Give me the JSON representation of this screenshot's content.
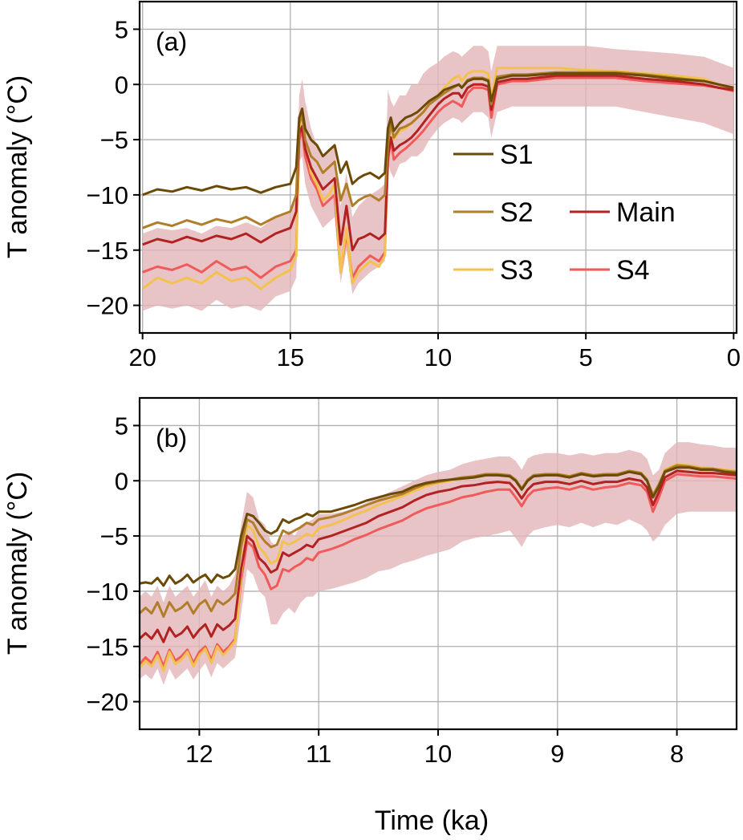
{
  "chart_data": [
    {
      "panel_label": "(a)",
      "type": "line",
      "ylabel": "T anomaly (°C)",
      "xlabel": "",
      "xlim": [
        20.1,
        -0.1
      ],
      "ylim": [
        -22.5,
        7.5
      ],
      "xticks": [
        20,
        15,
        10,
        5,
        0
      ],
      "yticks": [
        5,
        0,
        -5,
        -10,
        -15,
        -20
      ],
      "ytick_labels": [
        "5",
        "0",
        "−5",
        "−10",
        "−15",
        "−20"
      ],
      "grid": true,
      "legend": {
        "placement": "center-right",
        "entries": [
          "S1",
          "S2",
          "Main",
          "S3",
          "S4"
        ]
      },
      "x": [
        20,
        19.5,
        19,
        18.5,
        18,
        17.5,
        17,
        16.5,
        16,
        15.5,
        15,
        14.8,
        14.7,
        14.6,
        14.5,
        14.3,
        14.1,
        13.9,
        13.7,
        13.5,
        13.3,
        13.1,
        12.9,
        12.7,
        12.5,
        12.3,
        12,
        11.8,
        11.7,
        11.6,
        11.5,
        11.3,
        11.1,
        10.9,
        10.7,
        10.5,
        10.3,
        10,
        9.8,
        9.5,
        9.3,
        9.2,
        9,
        8.8,
        8.5,
        8.3,
        8.2,
        8,
        7.5,
        7,
        6,
        5,
        4,
        3,
        2,
        1,
        0.5,
        0
      ],
      "band": {
        "lower": [
          -20.5,
          -20,
          -20.3,
          -20,
          -20.5,
          -19.5,
          -20.3,
          -20,
          -20.5,
          -19.2,
          -18.7,
          -17.5,
          -7,
          -6.5,
          -9,
          -11,
          -12,
          -13,
          -12.5,
          -12,
          -18,
          -15,
          -19,
          -18,
          -17.5,
          -17,
          -16.5,
          -16,
          -7,
          -8,
          -8.5,
          -7.2,
          -7,
          -6.5,
          -6.5,
          -6,
          -5,
          -4,
          -3.5,
          -3,
          -3.2,
          -3.5,
          -3,
          -2.5,
          -2.5,
          -3,
          -4.8,
          -2.5,
          -2,
          -2,
          -2,
          -2,
          -2,
          -2.5,
          -3,
          -3.5,
          -4,
          -4.5
        ],
        "upper": [
          -13.5,
          -13,
          -13.2,
          -13,
          -13.5,
          -12.8,
          -13,
          -12.5,
          -13,
          -12,
          -11.5,
          -10.5,
          -1,
          0.5,
          -1.5,
          -4,
          -5.5,
          -6.5,
          -5.8,
          -5.5,
          -11,
          -8,
          -12,
          -11,
          -10.5,
          -10,
          -9.5,
          -9,
          -0.5,
          -1.5,
          -2,
          -1,
          -1,
          0,
          0,
          1,
          1.5,
          2,
          2.5,
          3,
          2.8,
          2.5,
          3,
          3.5,
          3.5,
          3,
          1.2,
          3.5,
          3.5,
          3.5,
          3.5,
          3.5,
          3.2,
          3,
          2.8,
          2.5,
          2,
          1.5
        ]
      },
      "series": [
        {
          "name": "S1",
          "color": "#6b4a07",
          "values": [
            -10,
            -9.5,
            -9.7,
            -9.3,
            -9.6,
            -9.2,
            -9.5,
            -9.3,
            -9.8,
            -9.3,
            -9,
            -7.5,
            -3,
            -2.2,
            -4,
            -5,
            -5.5,
            -6.5,
            -6,
            -5.5,
            -8,
            -7,
            -9,
            -8.5,
            -8.2,
            -8,
            -8.5,
            -8,
            -4,
            -3,
            -4.2,
            -3.5,
            -3,
            -2.8,
            -2.5,
            -2,
            -1.5,
            -1,
            -0.5,
            -0.2,
            0,
            -0.3,
            0.3,
            0.5,
            0.5,
            0.3,
            -1.5,
            0.5,
            0.8,
            0.8,
            1,
            1,
            1,
            0.8,
            0.5,
            0.3,
            0,
            -0.3
          ]
        },
        {
          "name": "S2",
          "color": "#b07e2a",
          "values": [
            -13,
            -12.5,
            -12.8,
            -12.3,
            -12.7,
            -12.2,
            -12.5,
            -12,
            -12.7,
            -12,
            -11.5,
            -10,
            -3.5,
            -2.8,
            -5,
            -6.5,
            -7,
            -8,
            -7.5,
            -7,
            -10.5,
            -9,
            -11,
            -10.5,
            -10.2,
            -10,
            -10.5,
            -10,
            -5.5,
            -3.5,
            -4.8,
            -4,
            -3.8,
            -3.5,
            -3,
            -2.5,
            -1.8,
            -1.2,
            -0.8,
            -0.3,
            0,
            -0.3,
            0.4,
            0.6,
            0.6,
            0.4,
            -1.8,
            0.7,
            0.9,
            0.9,
            1.1,
            1.1,
            1.1,
            0.9,
            0.6,
            0.3,
            0,
            -0.3
          ]
        },
        {
          "name": "Main",
          "color": "#b22222",
          "values": [
            -14.5,
            -14,
            -14.3,
            -13.8,
            -14.2,
            -13.7,
            -14,
            -13.5,
            -14.3,
            -13.5,
            -13,
            -11.5,
            -4.5,
            -3.8,
            -5.8,
            -7.5,
            -8.5,
            -9.5,
            -9,
            -8.5,
            -14.5,
            -11,
            -15,
            -14,
            -13.8,
            -13.5,
            -14,
            -13.5,
            -6.5,
            -4.8,
            -6,
            -5.5,
            -5.2,
            -4.8,
            -4.2,
            -3.5,
            -2.8,
            -1.8,
            -1.3,
            -0.8,
            -0.8,
            -1.2,
            -0.3,
            0,
            0,
            -0.2,
            -2.3,
            0.2,
            0.5,
            0.5,
            0.8,
            0.8,
            0.8,
            0.5,
            0.3,
            0,
            -0.3,
            -0.5
          ]
        },
        {
          "name": "S3",
          "color": "#f2c14e",
          "values": [
            -18.5,
            -17.5,
            -18,
            -17.5,
            -18,
            -17,
            -17.8,
            -17.5,
            -18.5,
            -17.5,
            -16.8,
            -15.5,
            -4,
            -2.5,
            -5.5,
            -8,
            -9,
            -10.5,
            -10,
            -9,
            -17,
            -13,
            -18,
            -17,
            -16.5,
            -16,
            -16.5,
            -15.5,
            -5,
            -3.5,
            -5,
            -4.2,
            -4,
            -3.5,
            -3,
            -2.5,
            -1.8,
            -1,
            -0.3,
            0.5,
            0.8,
            0.3,
            1,
            1.2,
            1.2,
            1,
            -1.2,
            1.5,
            1.5,
            1.5,
            1.5,
            1.3,
            1.2,
            1,
            0.8,
            0.5,
            0,
            -0.5
          ]
        },
        {
          "name": "S4",
          "color": "#f05a5a",
          "values": [
            -17,
            -16.5,
            -16.8,
            -16.3,
            -17,
            -16,
            -16.8,
            -16.5,
            -17.5,
            -16.5,
            -16,
            -15,
            -5,
            -4.2,
            -6.5,
            -8.5,
            -9.5,
            -11,
            -10.5,
            -10,
            -17,
            -13.5,
            -17.5,
            -16.5,
            -16,
            -15.5,
            -16,
            -15.2,
            -7,
            -5,
            -6.8,
            -6.2,
            -5.8,
            -5.3,
            -4.8,
            -4.2,
            -3.5,
            -2.5,
            -2,
            -1.5,
            -1.8,
            -2,
            -0.8,
            -0.3,
            -0.3,
            -0.5,
            -3,
            0,
            0.3,
            0.3,
            0.6,
            0.6,
            0.6,
            0.3,
            0.1,
            -0.1,
            -0.3,
            -0.6
          ]
        }
      ]
    },
    {
      "panel_label": "(b)",
      "type": "line",
      "ylabel": "T anomaly (°C)",
      "xlabel": "Time (ka)",
      "xlim": [
        12.5,
        7.5
      ],
      "ylim": [
        -22.5,
        7.5
      ],
      "xticks": [
        12,
        11,
        10,
        9,
        8
      ],
      "yticks": [
        5,
        0,
        -5,
        -10,
        -15,
        -20
      ],
      "ytick_labels": [
        "5",
        "0",
        "−5",
        "−10",
        "−15",
        "−20"
      ],
      "grid": true,
      "x": [
        12.5,
        12.45,
        12.4,
        12.35,
        12.3,
        12.25,
        12.2,
        12.15,
        12.1,
        12.05,
        12,
        11.95,
        11.9,
        11.85,
        11.8,
        11.75,
        11.7,
        11.65,
        11.6,
        11.55,
        11.5,
        11.45,
        11.4,
        11.35,
        11.3,
        11.25,
        11.2,
        11.15,
        11.1,
        11.05,
        11,
        10.9,
        10.8,
        10.7,
        10.6,
        10.5,
        10.4,
        10.3,
        10.2,
        10.1,
        10,
        9.9,
        9.8,
        9.7,
        9.6,
        9.5,
        9.4,
        9.35,
        9.3,
        9.25,
        9.2,
        9.1,
        9,
        8.9,
        8.8,
        8.7,
        8.6,
        8.5,
        8.4,
        8.3,
        8.25,
        8.2,
        8.15,
        8.1,
        8,
        7.9,
        7.8,
        7.7,
        7.6,
        7.5
      ],
      "band": {
        "lower": [
          -18,
          -17.5,
          -18,
          -17,
          -18.5,
          -17,
          -18,
          -17.5,
          -17,
          -18,
          -17.2,
          -16.5,
          -17.8,
          -16.5,
          -17,
          -16.5,
          -16,
          -12,
          -8,
          -8.5,
          -10,
          -10.5,
          -13,
          -13,
          -12,
          -11.5,
          -12,
          -11,
          -10.5,
          -10.5,
          -10,
          -9.8,
          -9.5,
          -9.2,
          -8.8,
          -8.2,
          -8,
          -7.5,
          -7.2,
          -6.8,
          -6.5,
          -6.2,
          -5.5,
          -5.2,
          -5,
          -4.8,
          -4.5,
          -5.2,
          -6,
          -5,
          -4.5,
          -4.2,
          -4,
          -4.2,
          -3.8,
          -4.2,
          -3.8,
          -4,
          -3.5,
          -4,
          -4.5,
          -5.5,
          -5,
          -4,
          -3,
          -2.8,
          -2.8,
          -2.8,
          -2.8,
          -2.8
        ],
        "upper": [
          -10.5,
          -10,
          -10.5,
          -9.5,
          -11,
          -9.5,
          -10.5,
          -10,
          -9.5,
          -10.5,
          -9.8,
          -9,
          -10.5,
          -9.5,
          -10,
          -9.5,
          -8.5,
          -4,
          -1,
          -1.5,
          -3.5,
          -4,
          -5.5,
          -6,
          -5,
          -4.5,
          -5,
          -4,
          -3.8,
          -3.5,
          -3,
          -3,
          -2.8,
          -2.5,
          -2,
          -1.5,
          -1,
          -0.5,
          0,
          0.5,
          0.8,
          1,
          1.5,
          1.8,
          2,
          2.2,
          2.2,
          1.8,
          1,
          2,
          2.3,
          2.5,
          2.5,
          2.3,
          2.5,
          2.3,
          2.5,
          2.5,
          2.8,
          2.5,
          2,
          0.5,
          1,
          2.5,
          3.5,
          3.5,
          3.3,
          3.2,
          3,
          3
        ]
      },
      "series": [
        {
          "name": "S1",
          "color": "#6b4a07",
          "values": [
            -9.3,
            -9.2,
            -9.3,
            -8.8,
            -9.5,
            -8.6,
            -9.3,
            -9,
            -8.5,
            -9.2,
            -8.8,
            -8.5,
            -9.2,
            -8.5,
            -8.8,
            -8.6,
            -8,
            -5,
            -3,
            -3.2,
            -3.8,
            -4.5,
            -4.8,
            -4.5,
            -3.5,
            -3.8,
            -3.5,
            -3.3,
            -3,
            -3.2,
            -2.8,
            -2.8,
            -2.5,
            -2.2,
            -1.8,
            -1.5,
            -1.2,
            -1,
            -0.5,
            -0.2,
            0,
            0.1,
            0.2,
            0.3,
            0.5,
            0.5,
            0.4,
            0,
            -0.8,
            0,
            0.4,
            0.5,
            0.5,
            0.3,
            0.6,
            0.4,
            0.5,
            0.5,
            0.8,
            0.6,
            0,
            -1.5,
            -0.5,
            0.8,
            1.2,
            1.2,
            1,
            1,
            0.8,
            0.7
          ]
        },
        {
          "name": "S2",
          "color": "#b07e2a",
          "values": [
            -12,
            -11.5,
            -12,
            -11,
            -12.3,
            -11,
            -11.8,
            -11.5,
            -11,
            -12,
            -11.2,
            -10.8,
            -11.8,
            -10.8,
            -11.2,
            -10.8,
            -10.2,
            -6,
            -3.5,
            -3.8,
            -4.8,
            -5.5,
            -6,
            -5.8,
            -4.5,
            -4.8,
            -4.5,
            -4.2,
            -3.8,
            -4,
            -3.5,
            -3.3,
            -3,
            -2.6,
            -2.2,
            -1.8,
            -1.5,
            -1.2,
            -0.7,
            -0.3,
            -0.1,
            0.1,
            0.3,
            0.4,
            0.6,
            0.6,
            0.5,
            0.1,
            -0.7,
            0.1,
            0.5,
            0.6,
            0.6,
            0.4,
            0.7,
            0.5,
            0.6,
            0.6,
            0.9,
            0.7,
            0.1,
            -1.3,
            -0.3,
            0.9,
            1.4,
            1.3,
            1.1,
            1.1,
            0.9,
            0.8
          ]
        },
        {
          "name": "Main",
          "color": "#b22222",
          "values": [
            -14.3,
            -13.8,
            -14.3,
            -13.5,
            -14.6,
            -13.3,
            -14.1,
            -13.8,
            -13.2,
            -14.2,
            -13.5,
            -13,
            -14.1,
            -13,
            -13.5,
            -13.1,
            -12.5,
            -8,
            -5,
            -5.5,
            -7,
            -7.5,
            -8.3,
            -8,
            -6.5,
            -6.8,
            -6.5,
            -6.2,
            -5.8,
            -6,
            -5.3,
            -5,
            -4.6,
            -4.2,
            -3.8,
            -3.2,
            -2.8,
            -2.4,
            -1.8,
            -1.3,
            -1,
            -0.8,
            -0.5,
            -0.4,
            -0.2,
            -0.1,
            -0.2,
            -0.8,
            -1.6,
            -0.8,
            -0.3,
            -0.1,
            -0.1,
            -0.3,
            0,
            -0.3,
            -0.1,
            -0.1,
            0.2,
            0,
            -0.6,
            -2.2,
            -1,
            0.3,
            0.9,
            0.8,
            0.7,
            0.7,
            0.6,
            0.5
          ]
        },
        {
          "name": "S3",
          "color": "#f2c14e",
          "values": [
            -17,
            -16.3,
            -16.8,
            -15.8,
            -17.2,
            -15.5,
            -16.6,
            -16.2,
            -15.5,
            -16.8,
            -15.8,
            -15.2,
            -16.5,
            -15,
            -15.8,
            -15.2,
            -14.5,
            -8.5,
            -4,
            -4.5,
            -6,
            -6.6,
            -7.5,
            -7.2,
            -5.5,
            -5.8,
            -5.5,
            -5.2,
            -4.8,
            -5,
            -4.3,
            -4,
            -3.6,
            -3.1,
            -2.7,
            -2.2,
            -1.8,
            -1.4,
            -0.9,
            -0.5,
            -0.2,
            0,
            0.2,
            0.3,
            0.5,
            0.5,
            0.4,
            0,
            -0.8,
            0,
            0.5,
            0.6,
            0.6,
            0.4,
            0.7,
            0.5,
            0.6,
            0.6,
            0.9,
            0.7,
            0.1,
            -1.5,
            -0.4,
            1,
            1.5,
            1.4,
            1.2,
            1.1,
            1,
            0.9
          ]
        },
        {
          "name": "S4",
          "color": "#f05a5a",
          "values": [
            -16.6,
            -16,
            -16.5,
            -15.5,
            -16.8,
            -15.3,
            -16.3,
            -15.9,
            -15.3,
            -16.5,
            -15.5,
            -15,
            -16.2,
            -14.8,
            -15.5,
            -15,
            -14.3,
            -9,
            -5.5,
            -6,
            -7.8,
            -8.5,
            -9.8,
            -9.5,
            -8,
            -8.2,
            -7.8,
            -7.5,
            -7,
            -7.2,
            -6.5,
            -6.2,
            -5.8,
            -5.3,
            -4.9,
            -4.4,
            -4,
            -3.6,
            -3,
            -2.5,
            -2.2,
            -1.9,
            -1.5,
            -1.3,
            -1,
            -0.8,
            -0.8,
            -1.5,
            -2.3,
            -1.4,
            -0.9,
            -0.7,
            -0.6,
            -0.8,
            -0.5,
            -0.8,
            -0.6,
            -0.5,
            -0.2,
            -0.4,
            -1,
            -2.8,
            -1.5,
            0,
            0.6,
            0.5,
            0.4,
            0.4,
            0.3,
            0.2
          ]
        }
      ]
    }
  ]
}
